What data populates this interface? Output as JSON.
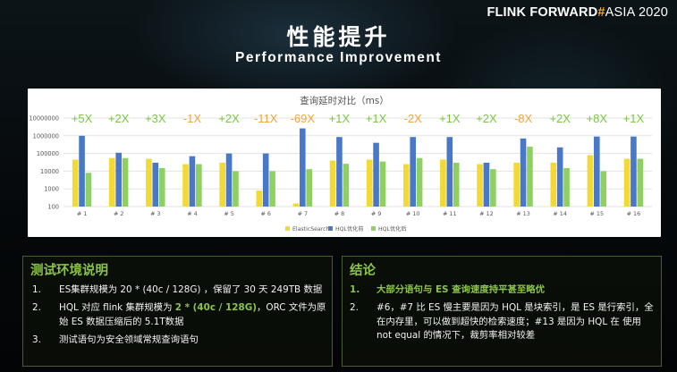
{
  "header": {
    "brand_part1": "FLINK FORWARD",
    "brand_hash": "#",
    "brand_part2": "ASIA 2020",
    "title_cn": "性能提升",
    "title_en": "Performance Improvement"
  },
  "chart_data": {
    "type": "bar",
    "title": "查询延时对比（ms）",
    "yscale": "log",
    "ylim": [
      100,
      10000000
    ],
    "ytick_labels": [
      "100",
      "1000",
      "10000",
      "100000",
      "1000000",
      "10000000"
    ],
    "grid": true,
    "legend_position": "bottom",
    "categories": [
      "# 1",
      "# 2",
      "# 3",
      "# 4",
      "# 5",
      "# 6",
      "# 7",
      "# 8",
      "# 9",
      "# 10",
      "# 11",
      "# 12",
      "# 13",
      "# 14",
      "# 15",
      "# 16"
    ],
    "series": [
      {
        "name": "ElasticSearch",
        "color": "#f2d933",
        "values": [
          45000,
          55000,
          50000,
          25000,
          30000,
          800,
          150,
          40000,
          45000,
          25000,
          45000,
          25000,
          30000,
          30000,
          80000,
          50000
        ]
      },
      {
        "name": "HQL优化前",
        "color": "#4a78c9",
        "values": [
          1000000,
          110000,
          30000,
          70000,
          100000,
          100000,
          2600000,
          850000,
          400000,
          850000,
          850000,
          30000,
          700000,
          220000,
          900000,
          900000
        ]
      },
      {
        "name": "HQL优化后",
        "color": "#8fd063",
        "values": [
          8000,
          55000,
          15000,
          25000,
          10000,
          10000,
          13000,
          26000,
          35000,
          55000,
          30000,
          13000,
          240000,
          15000,
          10000,
          50000
        ]
      }
    ],
    "annotations": [
      "+5X",
      "+2X",
      "+3X",
      "-1X",
      "+2X",
      "-11X",
      "-69X",
      "+1X",
      "+1X",
      "-2X",
      "+1X",
      "+2X",
      "-8X",
      "+2X",
      "+8X",
      "+1X"
    ],
    "annotation_colors": {
      "positive": "#7cc644",
      "negative": "#f2a33a"
    }
  },
  "left_box": {
    "title": "测试环境说明",
    "items": [
      {
        "num": "1.",
        "text": "ES集群规模为 20 * (40c / 128G) ，保留了 30 天 249TB 数据"
      },
      {
        "num": "2.",
        "pre": "HQL 对应 flink 集群规模为 ",
        "hl": "2 * (40c / 128G)",
        "post": "，ORC 文件为原始 ES 数据压缩后的 5.1T数据"
      },
      {
        "num": "3.",
        "text": "测试语句为安全领域常规查询语句"
      }
    ]
  },
  "right_box": {
    "title": "结论",
    "items": [
      {
        "num": "1.",
        "text": "大部分语句与 ES 查询速度持平甚至略优"
      },
      {
        "num": "2.",
        "text": "#6，#7 比 ES 慢主要是因为 HQL 是块索引，是 ES 是行索引，全在内存里，可以做到超快的检索速度；#13 是因为 HQL 在 使用 not equal 的情况下，裁剪率相对较差"
      }
    ]
  }
}
